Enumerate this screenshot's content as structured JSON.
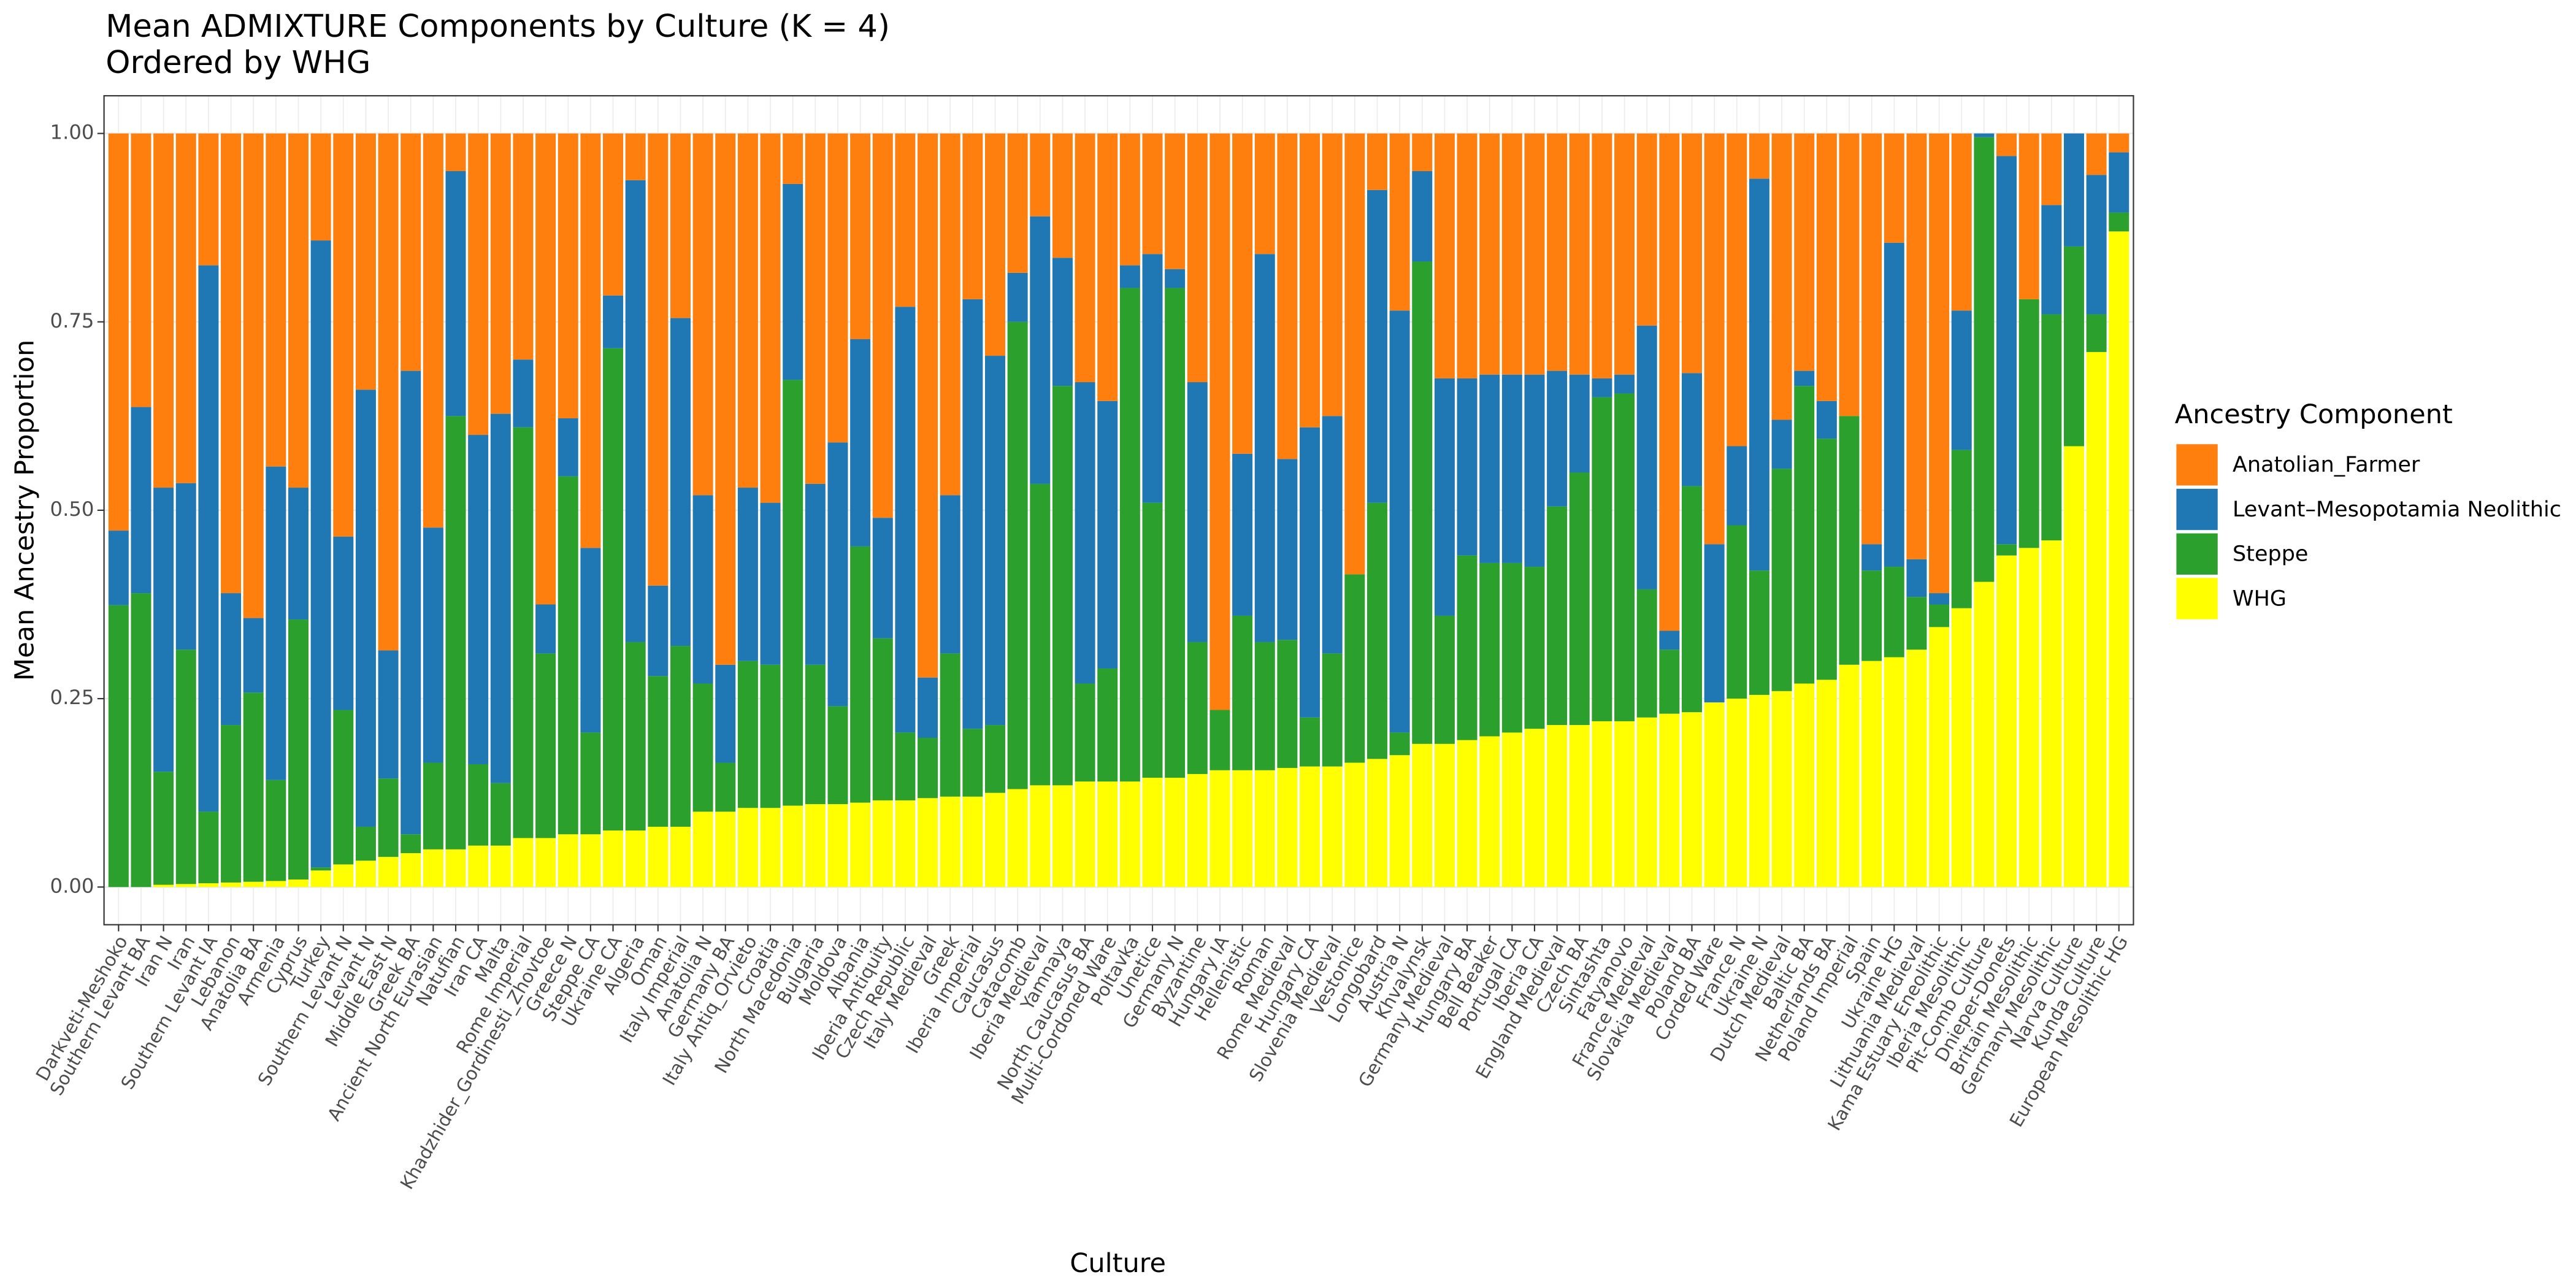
{
  "chart_data": {
    "type": "stacked_bar",
    "title": "Mean ADMIXTURE Components by Culture (K = 4)",
    "subtitle": "Ordered by WHG",
    "x_label": "Culture",
    "y_label": "Mean Ancestry Proportion",
    "legend_title": "Ancestry Component",
    "legend_position": "right",
    "grid": true,
    "ylim": [
      -0.05,
      1.05
    ],
    "yticks": [
      {
        "value": 0,
        "label": "0.00"
      },
      {
        "value": 0.25,
        "label": "0.25"
      },
      {
        "value": 0.5,
        "label": "0.50"
      },
      {
        "value": 0.75,
        "label": "0.75"
      },
      {
        "value": 1,
        "label": "1.00"
      }
    ],
    "categories": [
      "Darkveti-Meshoko",
      "Southern Levant BA",
      "Iran N",
      "Iran",
      "Southern Levant IA",
      "Lebanon",
      "Anatolia BA",
      "Armenia",
      "Cyprus",
      "Turkey",
      "Southern Levant N",
      "Levant N",
      "Middle East N",
      "Greek BA",
      "Ancient North Eurasian",
      "Natufian",
      "Iran CA",
      "Malta",
      "Rome Imperial",
      "Khadzhider_Gordinesti_Zhovtoe",
      "Greece N",
      "Steppe CA",
      "Ukraine CA",
      "Algeria",
      "Oman",
      "Italy Imperial",
      "Anatolia N",
      "Germany BA",
      "Italy Antiq_Orvieto",
      "Croatia",
      "North Macedonia",
      "Bulgaria",
      "Moldova",
      "Albania",
      "Iberia Antiquity",
      "Czech Republic",
      "Italy Medieval",
      "Greek",
      "Iberia Imperial",
      "Caucasus",
      "Catacomb",
      "Iberia Medieval",
      "Yamnaya",
      "North Caucasus BA",
      "Multi-Cordoned Ware",
      "Poltavka",
      "Unetice",
      "Germany N",
      "Byzantine",
      "Hungary IA",
      "Hellenistic",
      "Roman",
      "Rome Medieval",
      "Hungary CA",
      "Slovenia Medieval",
      "Vestonice",
      "Longobard",
      "Austria N",
      "Khvalynsk",
      "Germany Medieval",
      "Hungary BA",
      "Bell Beaker",
      "Portugal CA",
      "Iberia CA",
      "England Medieval",
      "Czech BA",
      "Sintashta",
      "Fatyanovo",
      "France Medieval",
      "Slovakia Medieval",
      "Poland BA",
      "Corded Ware",
      "France N",
      "Ukraine N",
      "Dutch Medieval",
      "Baltic BA",
      "Netherlands BA",
      "Poland Imperial",
      "Spain",
      "Ukraine HG",
      "Lithuania Medieval",
      "Kama Estuary Eneolithic",
      "Iberia Mesolithic",
      "Pit-Comb Culture",
      "Dnieper-Donets",
      "Britain Mesolithic",
      "Germany Mesolithic",
      "Narva Culture",
      "Kunda Culture",
      "European Mesolithic HG"
    ],
    "series": [
      {
        "name": "Anatolian_Farmer",
        "color": "#ff7f0e",
        "values": [
          0.527,
          0.363,
          0.47,
          0.464,
          0.175,
          0.61,
          0.643,
          0.442,
          0.47,
          0.142,
          0.535,
          0.34,
          0.686,
          0.315,
          0.523,
          0.05,
          0.4,
          0.372,
          0.3,
          0.625,
          0.378,
          0.55,
          0.215,
          0.062,
          0.6,
          0.245,
          0.48,
          0.705,
          0.47,
          0.49,
          0.067,
          0.465,
          0.41,
          0.273,
          0.51,
          0.23,
          0.722,
          0.48,
          0.22,
          0.295,
          0.185,
          0.11,
          0.165,
          0.33,
          0.355,
          0.175,
          0.16,
          0.18,
          0.33,
          0.765,
          0.425,
          0.16,
          0.432,
          0.39,
          0.375,
          0.585,
          0.075,
          0.235,
          0.05,
          0.325,
          0.325,
          0.32,
          0.32,
          0.32,
          0.315,
          0.32,
          0.325,
          0.32,
          0.255,
          0.66,
          0.318,
          0.545,
          0.415,
          0.06,
          0.38,
          0.315,
          0.355,
          0.375,
          0.545,
          0.145,
          0.565,
          0.61,
          0.235,
          0,
          0.03,
          0.22,
          0.095,
          0,
          0.055,
          0.025
        ]
      },
      {
        "name": "Levant–Mesopotamia Neolithic",
        "color": "#1f77b4",
        "values": [
          0.099,
          0.247,
          0.377,
          0.221,
          0.725,
          0.175,
          0.099,
          0.416,
          0.175,
          0.832,
          0.23,
          0.58,
          0.17,
          0.615,
          0.312,
          0.325,
          0.437,
          0.49,
          0.09,
          0.065,
          0.077,
          0.245,
          0.07,
          0.613,
          0.12,
          0.435,
          0.25,
          0.13,
          0.23,
          0.215,
          0.26,
          0.24,
          0.35,
          0.275,
          0.16,
          0.565,
          0.08,
          0.21,
          0.57,
          0.49,
          0.065,
          0.355,
          0.17,
          0.4,
          0.355,
          0.03,
          0.33,
          0.025,
          0.345,
          0,
          0.215,
          0.515,
          0.24,
          0.385,
          0.315,
          0,
          0.415,
          0.56,
          0.12,
          0.315,
          0.235,
          0.25,
          0.25,
          0.255,
          0.18,
          0.13,
          0.025,
          0.025,
          0.35,
          0.025,
          0.15,
          0.21,
          0.105,
          0.52,
          0.065,
          0.02,
          0.05,
          0,
          0.035,
          0.43,
          0.05,
          0.015,
          0.185,
          0.005,
          0.515,
          0,
          0.145,
          0.15,
          0.185,
          0.08
        ]
      },
      {
        "name": "Steppe",
        "color": "#2ca02c",
        "values": [
          0.374,
          0.39,
          0.15,
          0.311,
          0.095,
          0.209,
          0.251,
          0.134,
          0.345,
          0.004,
          0.205,
          0.045,
          0.104,
          0.025,
          0.115,
          0.575,
          0.108,
          0.083,
          0.545,
          0.245,
          0.475,
          0.135,
          0.64,
          0.25,
          0.2,
          0.24,
          0.17,
          0.065,
          0.195,
          0.19,
          0.565,
          0.185,
          0.13,
          0.34,
          0.215,
          0.09,
          0.08,
          0.19,
          0.09,
          0.09,
          0.62,
          0.4,
          0.53,
          0.13,
          0.15,
          0.655,
          0.365,
          0.65,
          0.175,
          0.08,
          0.205,
          0.17,
          0.17,
          0.065,
          0.15,
          0.25,
          0.34,
          0.03,
          0.64,
          0.17,
          0.245,
          0.23,
          0.225,
          0.215,
          0.29,
          0.335,
          0.43,
          0.435,
          0.17,
          0.085,
          0.3,
          0,
          0.23,
          0.165,
          0.295,
          0.395,
          0.32,
          0.33,
          0.12,
          0.12,
          0.07,
          0.03,
          0.21,
          0.59,
          0.015,
          0.33,
          0.3,
          0.265,
          0.05,
          0.025
        ]
      },
      {
        "name": "WHG",
        "color": "#ffff00",
        "values": [
          0,
          0,
          0.003,
          0.004,
          0.005,
          0.006,
          0.007,
          0.008,
          0.01,
          0.022,
          0.03,
          0.035,
          0.04,
          0.045,
          0.05,
          0.05,
          0.055,
          0.055,
          0.065,
          0.065,
          0.07,
          0.07,
          0.075,
          0.075,
          0.08,
          0.08,
          0.1,
          0.1,
          0.105,
          0.105,
          0.108,
          0.11,
          0.11,
          0.112,
          0.115,
          0.115,
          0.118,
          0.12,
          0.12,
          0.125,
          0.13,
          0.135,
          0.135,
          0.14,
          0.14,
          0.14,
          0.145,
          0.145,
          0.15,
          0.155,
          0.155,
          0.155,
          0.158,
          0.16,
          0.16,
          0.165,
          0.17,
          0.175,
          0.19,
          0.19,
          0.195,
          0.2,
          0.205,
          0.21,
          0.215,
          0.215,
          0.22,
          0.22,
          0.225,
          0.23,
          0.232,
          0.245,
          0.25,
          0.255,
          0.26,
          0.27,
          0.275,
          0.295,
          0.3,
          0.305,
          0.315,
          0.345,
          0.37,
          0.405,
          0.44,
          0.45,
          0.46,
          0.585,
          0.71,
          0.87
        ]
      }
    ]
  }
}
